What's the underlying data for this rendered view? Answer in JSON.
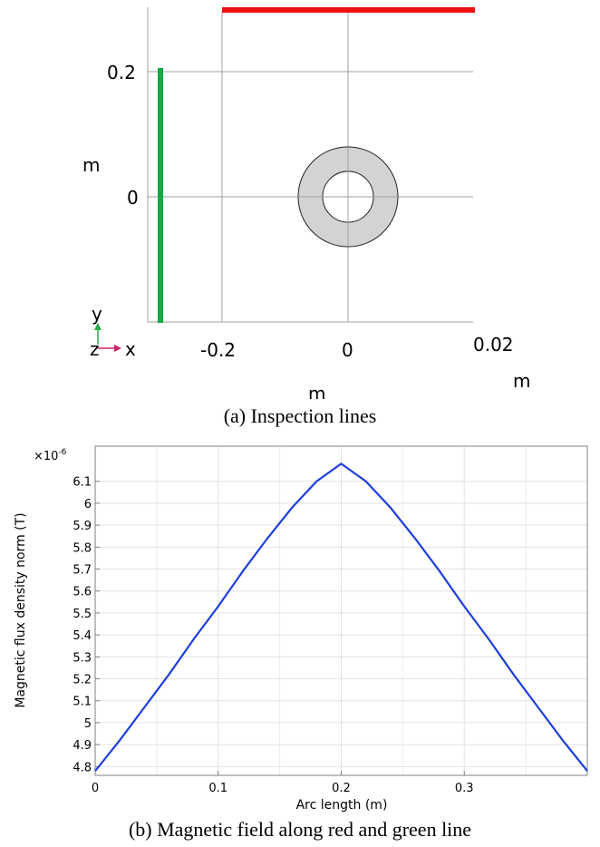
{
  "panel_a": {
    "caption": "(a) Inspection lines",
    "x_ticks": [
      "-0.2",
      "0",
      "0.02"
    ],
    "y_ticks": [
      "0.2",
      "0"
    ],
    "x_unit": "m",
    "y_unit": "m",
    "x_unit_clipped": "m",
    "triad": {
      "y": "y",
      "z": "z",
      "x": "x"
    },
    "colors": {
      "red_line": "#ee1111",
      "green_line": "#11aa44",
      "annulus_fill": "#d3d3d3",
      "grid": "#a0a0a0"
    }
  },
  "panel_b": {
    "caption": "(b) Magnetic field along red and green line"
  },
  "chart_data": {
    "type": "line",
    "title": "",
    "xlabel": "Arc length (m)",
    "ylabel": "Magnetic flux density norm (T)",
    "y_multiplier": "×10",
    "y_multiplier_exp": "-6",
    "xlim": [
      0,
      0.4
    ],
    "ylim": [
      4.76,
      6.26
    ],
    "x_ticks": [
      0,
      0.1,
      0.2,
      0.3
    ],
    "x_tick_labels": [
      "0",
      "0.1",
      "0.2",
      "0.3"
    ],
    "y_ticks": [
      4.8,
      4.9,
      5.0,
      5.1,
      5.2,
      5.3,
      5.4,
      5.5,
      5.6,
      5.7,
      5.8,
      5.9,
      6.0,
      6.1
    ],
    "y_tick_labels": [
      "4.8",
      "4.9",
      "5",
      "5.1",
      "5.2",
      "5.3",
      "5.4",
      "5.5",
      "5.6",
      "5.7",
      "5.8",
      "5.9",
      "6",
      "6.1"
    ],
    "grid": true,
    "color": "#1f3fdc",
    "series": [
      {
        "x": [
          0,
          0.02,
          0.04,
          0.06,
          0.08,
          0.1,
          0.12,
          0.14,
          0.16,
          0.18,
          0.2,
          0.22,
          0.24,
          0.26,
          0.28,
          0.3,
          0.32,
          0.34,
          0.36,
          0.38,
          0.4
        ],
        "values": [
          4.78,
          4.92,
          5.07,
          5.22,
          5.38,
          5.53,
          5.69,
          5.84,
          5.98,
          6.1,
          6.18,
          6.1,
          5.98,
          5.84,
          5.69,
          5.53,
          5.38,
          5.22,
          5.07,
          4.92,
          4.78
        ]
      }
    ]
  }
}
